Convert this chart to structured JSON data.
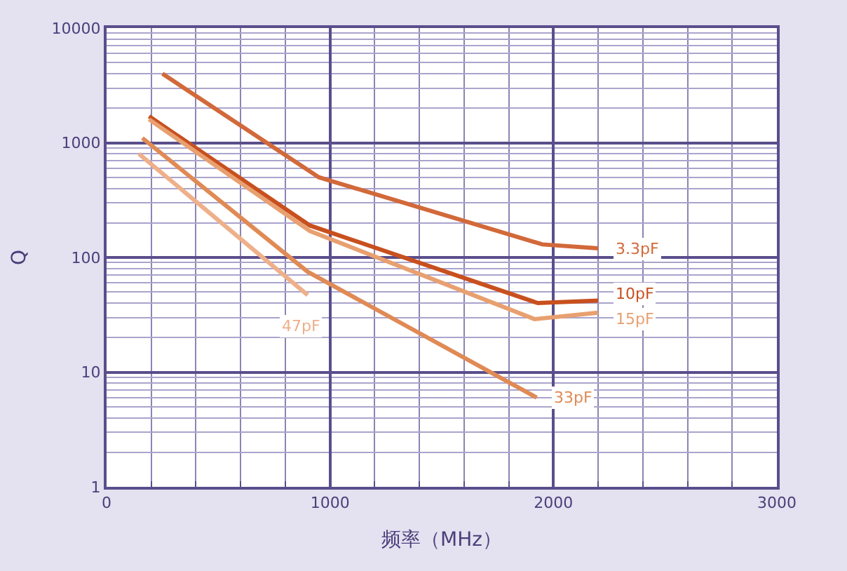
{
  "chart_data": {
    "type": "line",
    "xlabel": "频率（MHz）",
    "ylabel": "Q",
    "log": "y",
    "grid": true,
    "legend": false,
    "marker": "none",
    "line_style": "solid",
    "xlim": [
      0,
      3000
    ],
    "xticks": [
      0,
      {
        "value": 200,
        "label": null
      },
      {
        "value": 400,
        "label": null
      },
      {
        "value": 600,
        "label": null
      },
      {
        "value": 800,
        "label": null
      },
      1000,
      {
        "value": 1200,
        "label": null
      },
      {
        "value": 1400,
        "label": null
      },
      {
        "value": 1600,
        "label": null
      },
      {
        "value": 1800,
        "label": null
      },
      2000,
      {
        "value": 2200,
        "label": null
      },
      {
        "value": 2400,
        "label": null
      },
      {
        "value": 2600,
        "label": null
      },
      {
        "value": 2800,
        "label": null
      },
      3000
    ],
    "ylim": [
      1,
      10000
    ],
    "yticks": [
      1,
      10,
      100,
      1000,
      10000
    ],
    "series": [
      {
        "name": "3.3pF",
        "color": "#d2693a",
        "x": [
          250,
          950,
          1950,
          2200
        ],
        "values": [
          4000,
          500,
          130,
          120
        ]
      },
      {
        "name": "10pF",
        "color": "#c8501e",
        "x": [
          190,
          910,
          1930,
          2200
        ],
        "values": [
          1700,
          190,
          40,
          42
        ]
      },
      {
        "name": "15pF",
        "color": "#e8a070",
        "x": [
          190,
          910,
          1915,
          2200
        ],
        "values": [
          1600,
          170,
          29,
          33
        ]
      },
      {
        "name": "33pF",
        "color": "#e08a55",
        "x": [
          160,
          900,
          1925
        ],
        "values": [
          1100,
          75,
          6
        ]
      },
      {
        "name": "47pF",
        "color": "#eeb08a",
        "x": [
          145,
          900
        ],
        "values": [
          800,
          47
        ]
      }
    ]
  }
}
